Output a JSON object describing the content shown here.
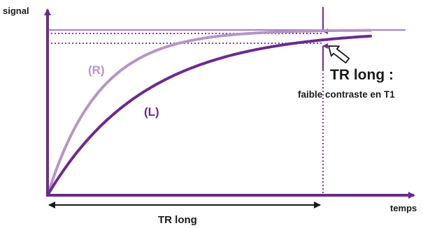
{
  "axes": {
    "y_label": "signal",
    "x_label": "temps"
  },
  "curves": [
    {
      "label": "(R)",
      "color": "#b596c8"
    },
    {
      "label": "(L)",
      "color": "#6a2b8d"
    }
  ],
  "annotation": {
    "title": "TR long :",
    "subtitle": "faible contraste en T1",
    "tr_span_label": "TR long"
  },
  "colors": {
    "axis": "#6a2b8d",
    "plateau": "#9a6fb6",
    "text_dark": "#1a1a1a",
    "arrow_outline": "#1a1a1a"
  },
  "icons": {
    "pointer": "hollow-arrow-icon"
  }
}
